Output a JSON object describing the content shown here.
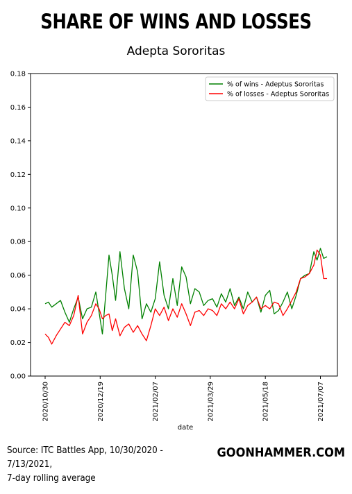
{
  "header": {
    "title": "SHARE OF WINS AND LOSSES",
    "subtitle": "Adepta Sororitas"
  },
  "footer": {
    "source_line1": "Source: ITC Battles App, 10/30/2020 - 7/13/2021,",
    "source_line2": "7-day rolling average",
    "brand": "GOONHAMMER.COM"
  },
  "chart_data": {
    "type": "line",
    "xlabel": "date",
    "ylabel": "",
    "x_range": [
      "2020-10-30",
      "2021-07-13"
    ],
    "ylim": [
      0.0,
      0.18
    ],
    "y_ticks": [
      "0.00",
      "0.02",
      "0.04",
      "0.06",
      "0.08",
      "0.10",
      "0.12",
      "0.14",
      "0.16",
      "0.18"
    ],
    "x_ticks": [
      "2020/10/30",
      "2020/12/19",
      "2021/02/07",
      "2021/03/29",
      "2021/05/18",
      "2021/07/07"
    ],
    "grid": false,
    "legend_position": "top-right",
    "series": [
      {
        "name": "% of wins - Adeptus Sororitas",
        "color": "#008000",
        "x": [
          "2020-10-30",
          "2020-11-02",
          "2020-11-05",
          "2020-11-09",
          "2020-11-13",
          "2020-11-17",
          "2020-11-21",
          "2020-11-25",
          "2020-11-29",
          "2020-12-03",
          "2020-12-07",
          "2020-12-11",
          "2020-12-15",
          "2020-12-18",
          "2020-12-21",
          "2020-12-24",
          "2020-12-27",
          "2020-12-30",
          "2021-01-02",
          "2021-01-06",
          "2021-01-10",
          "2021-01-14",
          "2021-01-18",
          "2021-01-22",
          "2021-01-26",
          "2021-01-30",
          "2021-02-03",
          "2021-02-07",
          "2021-02-11",
          "2021-02-15",
          "2021-02-19",
          "2021-02-23",
          "2021-02-27",
          "2021-03-03",
          "2021-03-07",
          "2021-03-11",
          "2021-03-15",
          "2021-03-19",
          "2021-03-23",
          "2021-03-27",
          "2021-03-31",
          "2021-04-04",
          "2021-04-08",
          "2021-04-12",
          "2021-04-16",
          "2021-04-20",
          "2021-04-24",
          "2021-04-28",
          "2021-05-02",
          "2021-05-06",
          "2021-05-10",
          "2021-05-14",
          "2021-05-18",
          "2021-05-22",
          "2021-05-26",
          "2021-05-30",
          "2021-06-03",
          "2021-06-07",
          "2021-06-11",
          "2021-06-15",
          "2021-06-19",
          "2021-06-23",
          "2021-06-27",
          "2021-07-01",
          "2021-07-04",
          "2021-07-07",
          "2021-07-10",
          "2021-07-13"
        ],
        "values": [
          0.043,
          0.044,
          0.041,
          0.043,
          0.045,
          0.038,
          0.032,
          0.04,
          0.047,
          0.034,
          0.04,
          0.041,
          0.05,
          0.038,
          0.025,
          0.048,
          0.072,
          0.06,
          0.045,
          0.074,
          0.052,
          0.04,
          0.072,
          0.062,
          0.034,
          0.043,
          0.038,
          0.046,
          0.068,
          0.048,
          0.04,
          0.058,
          0.042,
          0.065,
          0.059,
          0.043,
          0.052,
          0.05,
          0.042,
          0.045,
          0.046,
          0.041,
          0.049,
          0.044,
          0.052,
          0.042,
          0.047,
          0.04,
          0.05,
          0.044,
          0.047,
          0.038,
          0.048,
          0.051,
          0.037,
          0.039,
          0.044,
          0.05,
          0.04,
          0.048,
          0.058,
          0.06,
          0.061,
          0.074,
          0.069,
          0.076,
          0.07,
          0.071
        ]
      },
      {
        "name": "% of losses - Adeptus Sororitas",
        "color": "#ff0000",
        "x": [
          "2020-10-30",
          "2020-11-02",
          "2020-11-05",
          "2020-11-09",
          "2020-11-13",
          "2020-11-17",
          "2020-11-21",
          "2020-11-25",
          "2020-11-29",
          "2020-12-03",
          "2020-12-07",
          "2020-12-11",
          "2020-12-15",
          "2020-12-18",
          "2020-12-21",
          "2020-12-24",
          "2020-12-27",
          "2020-12-30",
          "2021-01-02",
          "2021-01-06",
          "2021-01-10",
          "2021-01-14",
          "2021-01-18",
          "2021-01-22",
          "2021-01-26",
          "2021-01-30",
          "2021-02-03",
          "2021-02-07",
          "2021-02-11",
          "2021-02-15",
          "2021-02-19",
          "2021-02-23",
          "2021-02-27",
          "2021-03-03",
          "2021-03-07",
          "2021-03-11",
          "2021-03-15",
          "2021-03-19",
          "2021-03-23",
          "2021-03-27",
          "2021-03-31",
          "2021-04-04",
          "2021-04-08",
          "2021-04-12",
          "2021-04-16",
          "2021-04-20",
          "2021-04-24",
          "2021-04-28",
          "2021-05-02",
          "2021-05-06",
          "2021-05-10",
          "2021-05-14",
          "2021-05-18",
          "2021-05-22",
          "2021-05-26",
          "2021-05-30",
          "2021-06-03",
          "2021-06-07",
          "2021-06-11",
          "2021-06-15",
          "2021-06-19",
          "2021-06-23",
          "2021-06-27",
          "2021-07-01",
          "2021-07-04",
          "2021-07-07",
          "2021-07-10",
          "2021-07-13"
        ],
        "values": [
          0.025,
          0.023,
          0.019,
          0.024,
          0.028,
          0.032,
          0.03,
          0.036,
          0.048,
          0.025,
          0.032,
          0.036,
          0.043,
          0.04,
          0.034,
          0.036,
          0.037,
          0.027,
          0.034,
          0.024,
          0.029,
          0.031,
          0.026,
          0.03,
          0.025,
          0.021,
          0.03,
          0.04,
          0.036,
          0.041,
          0.033,
          0.04,
          0.035,
          0.043,
          0.037,
          0.03,
          0.038,
          0.039,
          0.036,
          0.04,
          0.039,
          0.036,
          0.043,
          0.04,
          0.044,
          0.04,
          0.046,
          0.037,
          0.042,
          0.044,
          0.047,
          0.04,
          0.042,
          0.04,
          0.044,
          0.043,
          0.036,
          0.04,
          0.045,
          0.05,
          0.058,
          0.059,
          0.061,
          0.066,
          0.075,
          0.072,
          0.058,
          0.058
        ]
      }
    ]
  }
}
